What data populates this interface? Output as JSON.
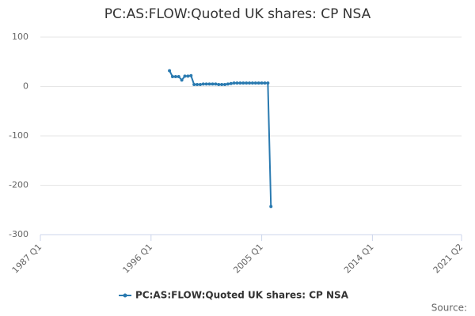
{
  "chart_data": {
    "type": "line",
    "title": "PC:AS:FLOW:Quoted UK shares: CP NSA",
    "x": [
      "1997 Q3",
      "1997 Q4",
      "1998 Q1",
      "1998 Q2",
      "1998 Q3",
      "1998 Q4",
      "1999 Q1",
      "1999 Q2",
      "1999 Q3",
      "1999 Q4",
      "2000 Q1",
      "2000 Q2",
      "2000 Q3",
      "2000 Q4",
      "2001 Q1",
      "2001 Q2",
      "2001 Q3",
      "2001 Q4",
      "2002 Q1",
      "2002 Q2",
      "2002 Q3",
      "2002 Q4",
      "2003 Q1",
      "2003 Q2",
      "2003 Q3",
      "2003 Q4",
      "2004 Q1",
      "2004 Q2",
      "2004 Q3",
      "2004 Q4",
      "2005 Q1",
      "2005 Q2",
      "2005 Q3",
      "2005 Q4"
    ],
    "series": [
      {
        "name": "PC:AS:FLOW:Quoted UK shares: CP NSA",
        "color": "#2a7ab0",
        "values": [
          32,
          20,
          20,
          20,
          13,
          21,
          21,
          22,
          4,
          4,
          4,
          5,
          5,
          5,
          5,
          5,
          4,
          4,
          4,
          5,
          6,
          7,
          7,
          7,
          7,
          7,
          7,
          7,
          7,
          7,
          7,
          7,
          7,
          -243
        ]
      }
    ],
    "xlim": [
      "1987 Q1",
      "2021 Q2"
    ],
    "xticks": [
      "1987 Q1",
      "1996 Q1",
      "2005 Q1",
      "2014 Q1",
      "2021 Q2"
    ],
    "ylim": [
      -300,
      100
    ],
    "yticks": [
      -300,
      -200,
      -100,
      0,
      100
    ],
    "grid": true,
    "source": "Source:"
  }
}
